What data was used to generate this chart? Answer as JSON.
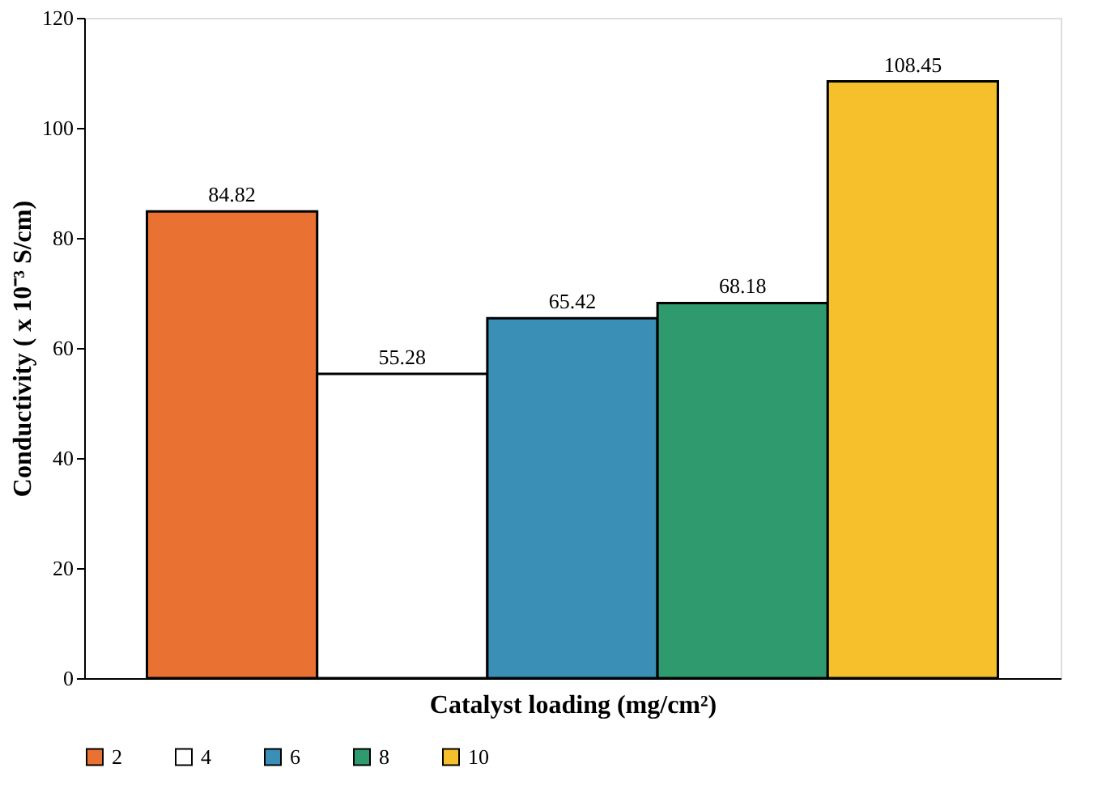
{
  "chart_data": {
    "type": "bar",
    "categories": [
      null
    ],
    "series": [
      {
        "name": "2",
        "color": "#e97132",
        "values": [
          84.82
        ]
      },
      {
        "name": "4",
        "color": "#ffffff",
        "values": [
          55.28
        ]
      },
      {
        "name": "6",
        "color": "#3a8fb7",
        "values": [
          65.42
        ]
      },
      {
        "name": "8",
        "color": "#2e9a6e",
        "values": [
          68.18
        ]
      },
      {
        "name": "10",
        "color": "#f5c02c",
        "values": [
          108.45
        ]
      }
    ],
    "xlabel": "Catalyst loading (mg/cm²)",
    "ylabel": "Conductivity ( x 10⁻³ S/cm)",
    "ylim": [
      0,
      120
    ],
    "yticks": [
      0,
      20,
      40,
      60,
      80,
      100,
      120
    ],
    "data_labels": true,
    "grid": false,
    "legend": "bottom",
    "tick_labels": "y"
  }
}
